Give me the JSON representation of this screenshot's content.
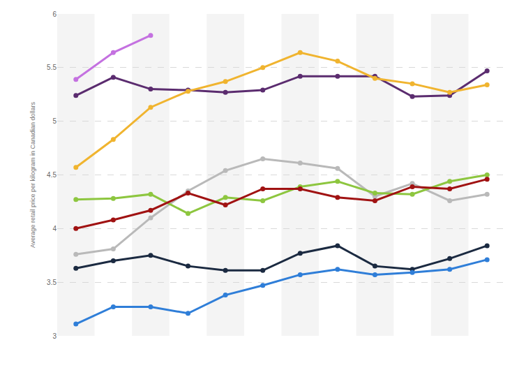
{
  "chart_data": {
    "type": "line",
    "y_label": "Average retail price per kilogram in Canadian dollars",
    "categories": [
      null,
      null,
      null,
      null,
      null,
      null,
      null,
      null,
      null,
      null,
      null,
      null
    ],
    "series": [
      {
        "color": "#c471e0",
        "values": [
          5.39,
          5.64,
          5.8,
          null,
          null,
          null,
          null,
          null,
          null,
          null,
          null,
          null
        ]
      },
      {
        "color": "#5b2c6f",
        "values": [
          5.24,
          5.41,
          5.3,
          5.29,
          5.27,
          5.29,
          5.42,
          5.42,
          5.42,
          5.23,
          5.24,
          5.47
        ]
      },
      {
        "color": "#f0b42f",
        "values": [
          4.57,
          4.83,
          5.13,
          5.28,
          5.37,
          5.5,
          5.64,
          5.56,
          5.4,
          5.35,
          5.27,
          5.34
        ]
      },
      {
        "color": "#b9b9b9",
        "values": [
          3.76,
          3.81,
          4.1,
          4.35,
          4.54,
          4.65,
          4.61,
          4.56,
          4.3,
          4.42,
          4.26,
          4.32
        ]
      },
      {
        "color": "#8dc63f",
        "values": [
          4.27,
          4.28,
          4.32,
          4.14,
          4.29,
          4.26,
          4.39,
          4.44,
          4.33,
          4.32,
          4.44,
          4.5
        ]
      },
      {
        "color": "#a01212",
        "values": [
          4.0,
          4.08,
          4.17,
          4.33,
          4.22,
          4.37,
          4.37,
          4.29,
          4.26,
          4.39,
          4.37,
          4.46
        ]
      },
      {
        "color": "#1b2a41",
        "values": [
          3.63,
          3.7,
          3.75,
          3.65,
          3.61,
          3.61,
          3.77,
          3.84,
          3.65,
          3.62,
          3.72,
          3.84
        ]
      },
      {
        "color": "#2f7ed8",
        "values": [
          3.11,
          3.27,
          3.27,
          3.21,
          3.38,
          3.47,
          3.57,
          3.62,
          3.57,
          3.59,
          3.62,
          3.71
        ]
      }
    ],
    "ylim": [
      3,
      6
    ],
    "yticks": [
      3,
      3.5,
      4,
      4.5,
      5,
      5.5,
      6
    ],
    "grid": true,
    "tick_labels": "y",
    "marker": "circle",
    "line_style": "solid"
  }
}
